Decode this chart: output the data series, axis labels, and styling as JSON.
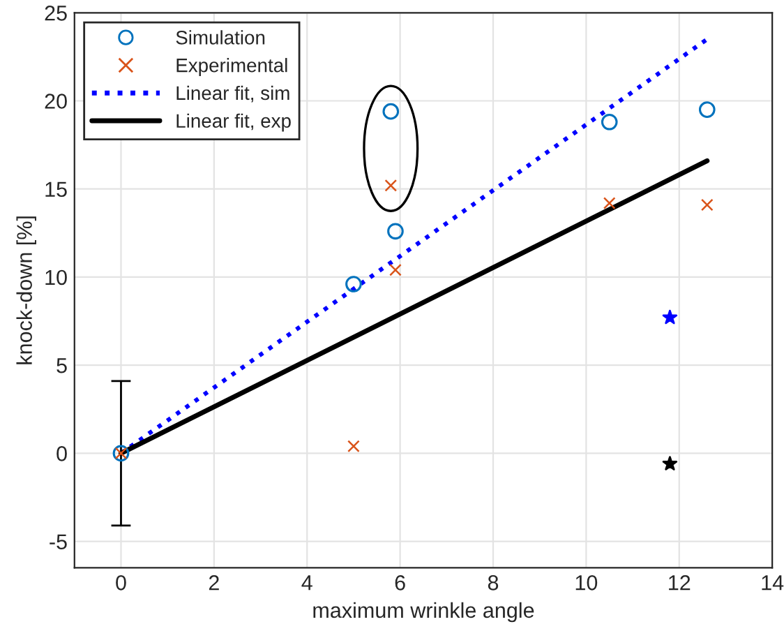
{
  "chart_data": {
    "type": "scatter",
    "xlabel": "maximum wrinkle angle",
    "ylabel": "knock-down [%]",
    "xlim": [
      -1,
      14
    ],
    "xticks": [
      0,
      2,
      4,
      6,
      8,
      10,
      12,
      14
    ],
    "ylim": [
      -6.5,
      25
    ],
    "yticks": [
      -5,
      0,
      5,
      10,
      15,
      20,
      25
    ],
    "grid": true,
    "legend": "top left",
    "series": [
      {
        "name": "Simulation",
        "marker": "circle",
        "color": "#0072bd",
        "x": [
          0,
          5,
          5.8,
          5.9,
          10.5,
          12.6
        ],
        "values": [
          0,
          9.6,
          19.4,
          12.6,
          18.8,
          19.5
        ],
        "errors": [
          4.1,
          null,
          null,
          null,
          null,
          null
        ]
      },
      {
        "name": "Experimental",
        "marker": "cross",
        "color": "#d95319",
        "x": [
          0,
          5,
          5.8,
          5.9,
          10.5,
          12.6
        ],
        "values": [
          0,
          0.4,
          15.2,
          10.4,
          14.2,
          14.1
        ]
      },
      {
        "name": "Linear fit, sim",
        "type": "line",
        "line_style": "dotted",
        "color": "#0000ff",
        "x": [
          0,
          12.6
        ],
        "values": [
          0,
          23.5
        ]
      },
      {
        "name": "Linear fit, exp",
        "type": "line",
        "line_style": "solid",
        "color": "#000000",
        "x": [
          0,
          12.6
        ],
        "values": [
          0,
          16.6
        ]
      },
      {
        "marker": "star",
        "color": "#0000ff",
        "x": [
          11.8
        ],
        "values": [
          7.7
        ]
      },
      {
        "marker": "star",
        "color": "#000000",
        "x": [
          11.8
        ],
        "values": [
          -0.6
        ]
      }
    ]
  }
}
